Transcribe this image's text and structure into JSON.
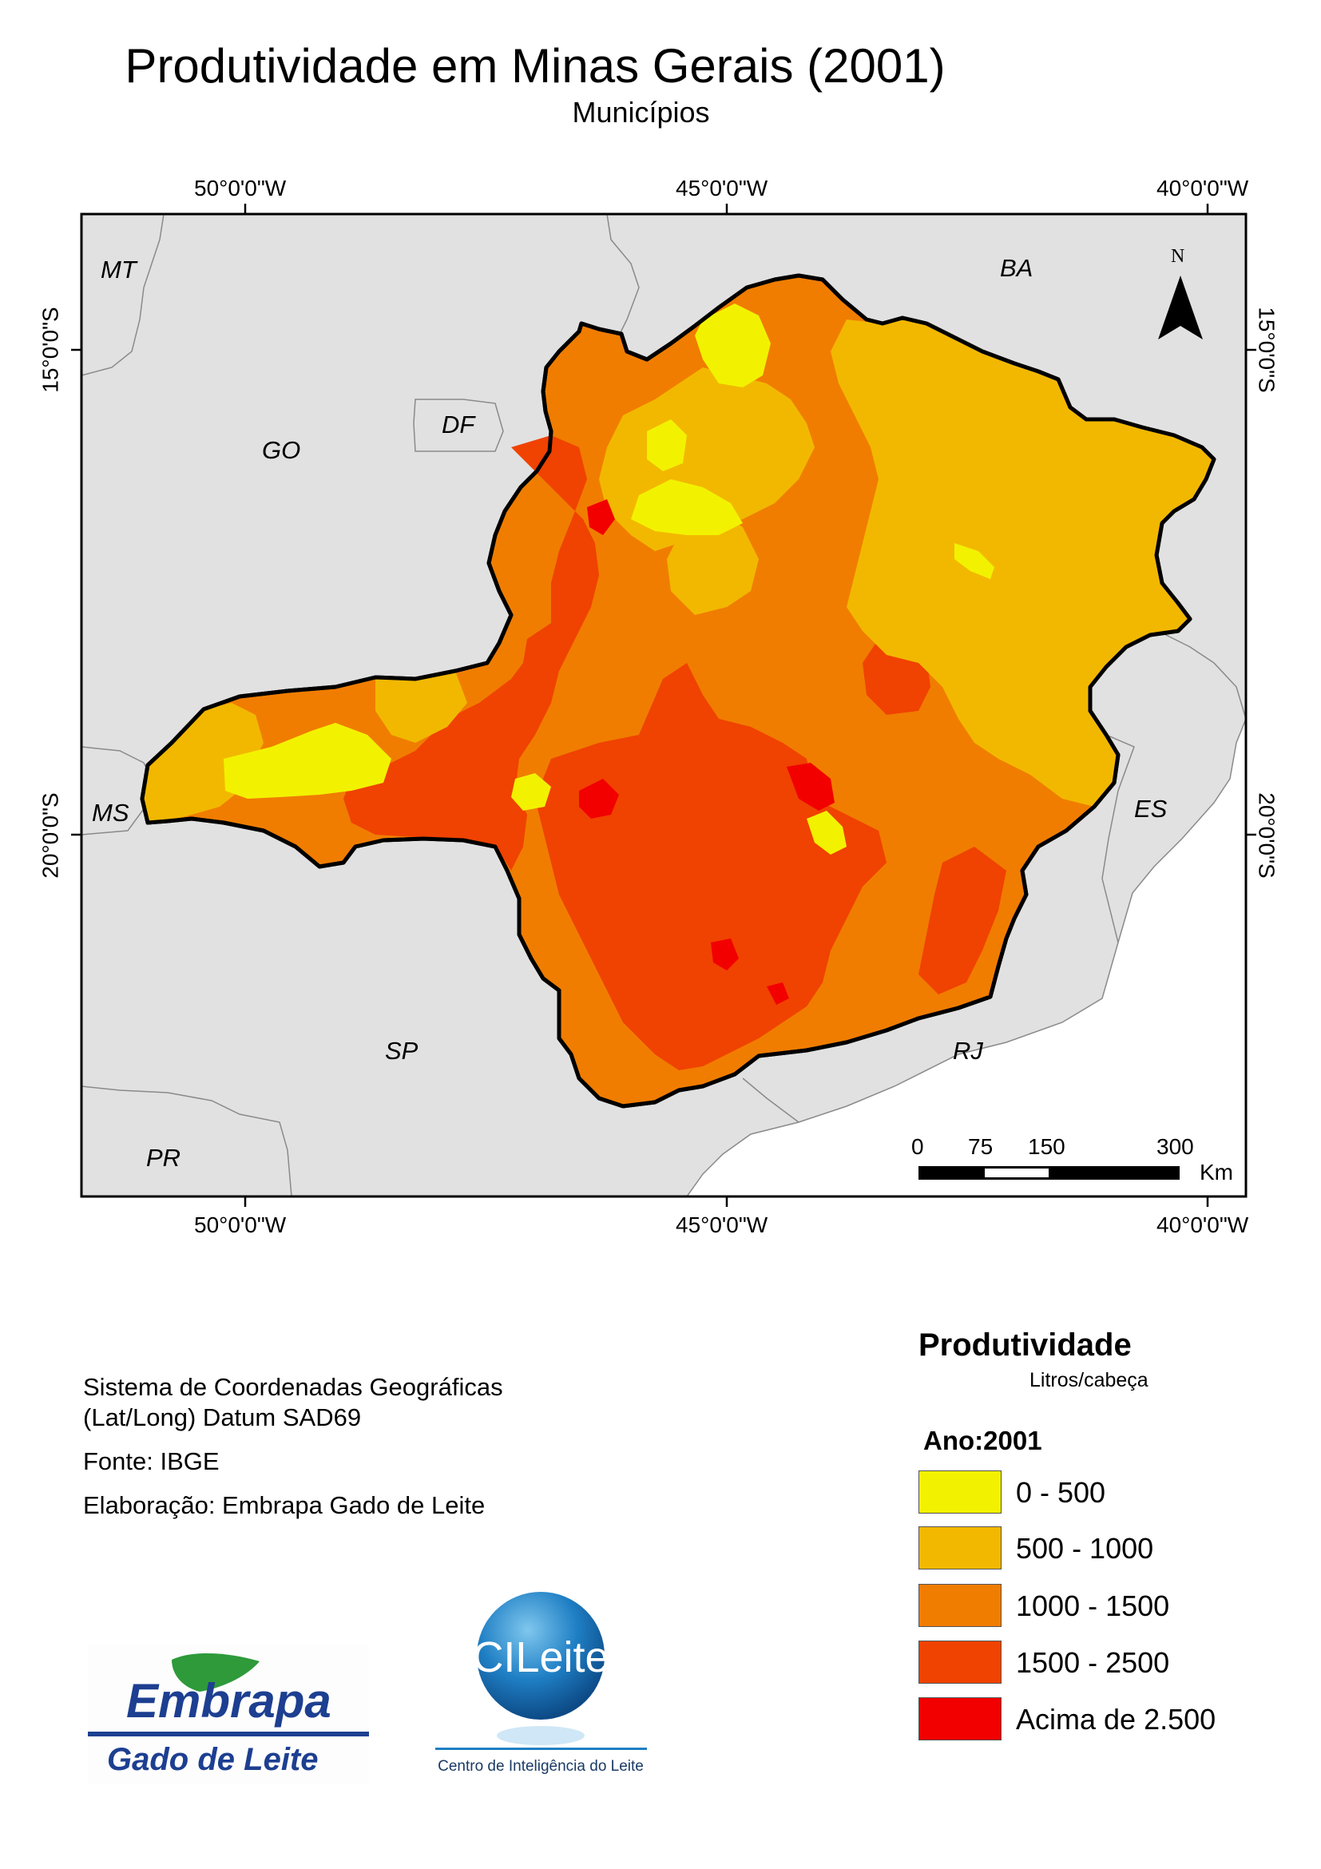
{
  "title": "Produtividade em Minas Gerais (2001)",
  "subtitle": "Municípios",
  "map": {
    "lon_ticks": [
      "50°0'0\"W",
      "45°0'0\"W",
      "40°0'0\"W"
    ],
    "lat_ticks": [
      "15°0'0\"S",
      "20°0'0\"S"
    ],
    "state_labels": [
      "MT",
      "BA",
      "GO",
      "DF",
      "MS",
      "ES",
      "SP",
      "RJ",
      "PR"
    ],
    "north_label": "N",
    "scale_bar": {
      "ticks": [
        "0",
        "75",
        "150",
        "300"
      ],
      "unit": "Km"
    },
    "colors": {
      "ocean": "#ffffff",
      "land": "#e1e1e1",
      "border": "#8a8a8a",
      "state_outline": "#000000"
    }
  },
  "info": {
    "coord_system_line1": "Sistema de Coordenadas Geográficas",
    "coord_system_line2": "(Lat/Long) Datum SAD69",
    "source": "Fonte: IBGE",
    "author": "Elaboração: Embrapa Gado de Leite"
  },
  "legend": {
    "title": "Produtividade",
    "unit": "Litros/cabeça",
    "year": "Ano:2001",
    "classes": [
      {
        "label": "0 - 500",
        "color": "#f2f200"
      },
      {
        "label": "500 - 1000",
        "color": "#f2b800"
      },
      {
        "label": "1000 - 1500",
        "color": "#f07d00"
      },
      {
        "label": "1500 - 2500",
        "color": "#f04200"
      },
      {
        "label": "Acima de 2.500",
        "color": "#f20000"
      }
    ]
  },
  "logos": {
    "embrapa_name": "Embrapa",
    "embrapa_sub": "Gado de Leite",
    "cileite_name": "CILeite",
    "cileite_sub": "Centro de Inteligência do Leite"
  }
}
